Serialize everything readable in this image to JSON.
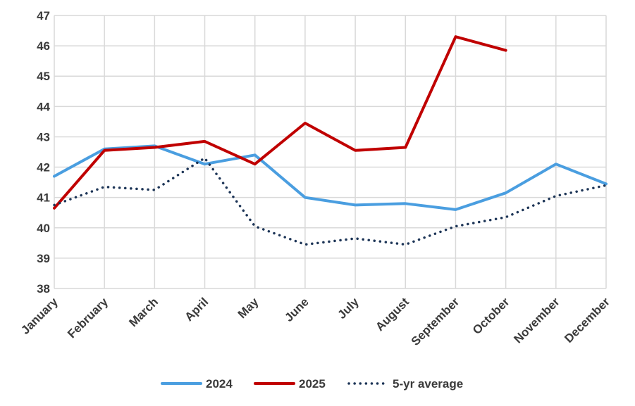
{
  "chart_data": {
    "type": "line",
    "title": "",
    "xlabel": "",
    "ylabel": "",
    "categories": [
      "January",
      "February",
      "March",
      "April",
      "May",
      "June",
      "July",
      "August",
      "September",
      "October",
      "November",
      "December"
    ],
    "ylim": [
      38,
      47
    ],
    "yticks": [
      38,
      39,
      40,
      41,
      42,
      43,
      44,
      45,
      46,
      47
    ],
    "grid": true,
    "legend_position": "bottom",
    "series": [
      {
        "name": "2024",
        "color": "#4a9ee0",
        "style": "solid",
        "values": [
          41.7,
          42.6,
          42.7,
          42.1,
          42.4,
          41.0,
          40.75,
          40.8,
          40.6,
          41.15,
          42.1,
          41.45
        ]
      },
      {
        "name": "2025",
        "color": "#c00000",
        "style": "solid",
        "values": [
          40.65,
          42.55,
          42.65,
          42.85,
          42.1,
          43.45,
          42.55,
          42.65,
          46.3,
          45.85,
          null,
          null
        ]
      },
      {
        "name": "5-yr average",
        "color": "#1d3557",
        "style": "dotted",
        "values": [
          40.75,
          41.35,
          41.25,
          42.3,
          40.05,
          39.45,
          39.65,
          39.45,
          40.05,
          40.35,
          41.05,
          41.4
        ]
      }
    ]
  }
}
